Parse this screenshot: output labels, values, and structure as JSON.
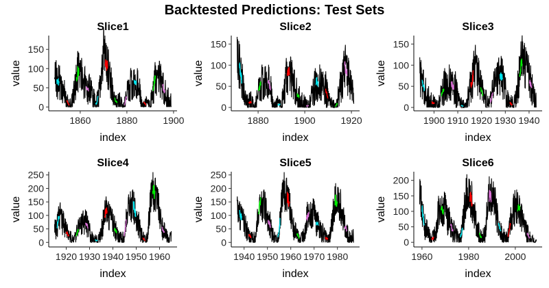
{
  "title": "Backtested Predictions: Test Sets",
  "colors": {
    "actual": "#000000",
    "segments": [
      "#00e5ee",
      "#ff0000",
      "#00ee00",
      "#da70d6"
    ]
  },
  "chart_data": [
    {
      "type": "line",
      "title": "Slice1",
      "xlabel": "index",
      "ylabel": "value",
      "xlim": [
        1846.5,
        1901.5
      ],
      "ylim": [
        -10,
        186
      ],
      "xticks": [
        1860,
        1880,
        1900
      ],
      "yticks": [
        0,
        50,
        100,
        150
      ],
      "x_range": [
        1849,
        1899
      ],
      "segments": [
        1850,
        1854.3,
        1858.4,
        1862.5,
        1866.6,
        1870.7,
        1874.8,
        1878.9,
        1883,
        1887.1,
        1891.2,
        1895.3
      ]
    },
    {
      "type": "line",
      "title": "Slice2",
      "xlabel": "index",
      "ylabel": "value",
      "xlim": [
        1868.5,
        1923.5
      ],
      "ylim": [
        -8,
        170
      ],
      "xticks": [
        1880,
        1900,
        1920
      ],
      "yticks": [
        0,
        50,
        100,
        150
      ],
      "x_range": [
        1871,
        1921
      ],
      "segments": [
        1872,
        1876.1,
        1880.2,
        1884.3,
        1888.4,
        1892.5,
        1896.6,
        1900.7,
        1904.8,
        1908.9,
        1913,
        1917.1
      ]
    },
    {
      "type": "line",
      "title": "Slice3",
      "xlabel": "index",
      "ylabel": "value",
      "xlim": [
        1891.5,
        1945.5
      ],
      "ylim": [
        -8,
        170
      ],
      "xticks": [
        1900,
        1910,
        1920,
        1930,
        1940
      ],
      "yticks": [
        0,
        50,
        100,
        150
      ],
      "x_range": [
        1894,
        1943
      ],
      "segments": [
        1895,
        1899.1,
        1903.2,
        1907.3,
        1911.4,
        1915.5,
        1919.6,
        1923.7,
        1927.8,
        1931.9,
        1936,
        1940.1
      ]
    },
    {
      "type": "line",
      "title": "Slice4",
      "xlabel": "index",
      "ylabel": "value",
      "xlim": [
        1912.5,
        1967.5
      ],
      "ylim": [
        -17,
        262
      ],
      "xticks": [
        1920,
        1930,
        1940,
        1950,
        1960
      ],
      "yticks": [
        0,
        50,
        100,
        150,
        200,
        250
      ],
      "x_range": [
        1915,
        1965
      ],
      "segments": [
        1916,
        1920.1,
        1924.2,
        1928.3,
        1932.4,
        1936.5,
        1940.6,
        1944.7,
        1948.8,
        1952.9,
        1957,
        1961.1
      ]
    },
    {
      "type": "line",
      "title": "Slice5",
      "xlabel": "index",
      "ylabel": "value",
      "xlim": [
        1934.5,
        1989.5
      ],
      "ylim": [
        -17,
        262
      ],
      "xticks": [
        1940,
        1950,
        1960,
        1970,
        1980
      ],
      "yticks": [
        0,
        50,
        100,
        150,
        200,
        250
      ],
      "x_range": [
        1937,
        1987
      ],
      "segments": [
        1938,
        1942.1,
        1946.2,
        1950.3,
        1954.4,
        1958.5,
        1962.6,
        1966.7,
        1970.8,
        1974.9,
        1979,
        1983.1
      ]
    },
    {
      "type": "line",
      "title": "Slice6",
      "xlabel": "index",
      "ylabel": "value",
      "xlim": [
        1956.5,
        2011.5
      ],
      "ylim": [
        -15,
        228
      ],
      "xticks": [
        1960,
        1980,
        2000
      ],
      "yticks": [
        0,
        50,
        100,
        150,
        200
      ],
      "x_range": [
        1959,
        2009
      ],
      "segments": [
        1960,
        1964.1,
        1968.2,
        1972.3,
        1976.4,
        1980.5,
        1984.6,
        1988.7,
        1992.8,
        1996.9,
        2001,
        2005.1
      ]
    }
  ],
  "series_yearly": {
    "start_year": 1849,
    "values": [
      95.4,
      66.5,
      64.5,
      54.2,
      39.0,
      20.6,
      6.7,
      4.3,
      22.7,
      54.8,
      93.8,
      95.8,
      77.2,
      59.1,
      44.0,
      47.0,
      30.5,
      16.3,
      7.3,
      37.6,
      74.0,
      139.0,
      111.2,
      101.6,
      66.2,
      44.7,
      17.0,
      11.3,
      12.4,
      3.4,
      6.0,
      32.3,
      54.3,
      59.7,
      63.7,
      63.5,
      52.2,
      25.4,
      13.1,
      6.8,
      6.3,
      7.1,
      35.6,
      73.0,
      85.1,
      78.0,
      64.0,
      41.8,
      26.2,
      26.7,
      12.1,
      9.5,
      2.7,
      5.0,
      24.4,
      42.0,
      63.5,
      53.8,
      62.0,
      48.5,
      43.9,
      18.6,
      5.7,
      3.6,
      1.4,
      9.6,
      47.4,
      57.1,
      103.9,
      80.6,
      63.6,
      37.6,
      26.1,
      14.2,
      5.8,
      16.7,
      44.3,
      63.9,
      69.0,
      77.8,
      64.9,
      35.7,
      21.2,
      11.1,
      5.7,
      8.7,
      36.1,
      79.7,
      114.4,
      109.6,
      88.8,
      67.8,
      47.5,
      30.6,
      16.3,
      9.6,
      33.2,
      92.6,
      151.6,
      136.3,
      134.7,
      83.9,
      69.4,
      31.5,
      13.9,
      4.4,
      38.0,
      141.7,
      190.2,
      184.8,
      159.0,
      112.3,
      53.9,
      37.6,
      27.9,
      10.2,
      15.1,
      47.0,
      93.8,
      105.9,
      105.5,
      104.5,
      66.6,
      68.9,
      38.0,
      34.5,
      15.5,
      12.6,
      27.5,
      92.5,
      155.4,
      154.6,
      140.4,
      115.9,
      66.6,
      45.9,
      17.9,
      13.4,
      29.4,
      100.2,
      157.6,
      142.6,
      145.7,
      94.3,
      54.6,
      29.9,
      17.5,
      8.6,
      21.5,
      64.3,
      93.3,
      119.6,
      111.0,
      104.0,
      63.7,
      40.4,
      29.8,
      15.2,
      7.5,
      2.9,
      3.1,
      16.5
    ]
  }
}
